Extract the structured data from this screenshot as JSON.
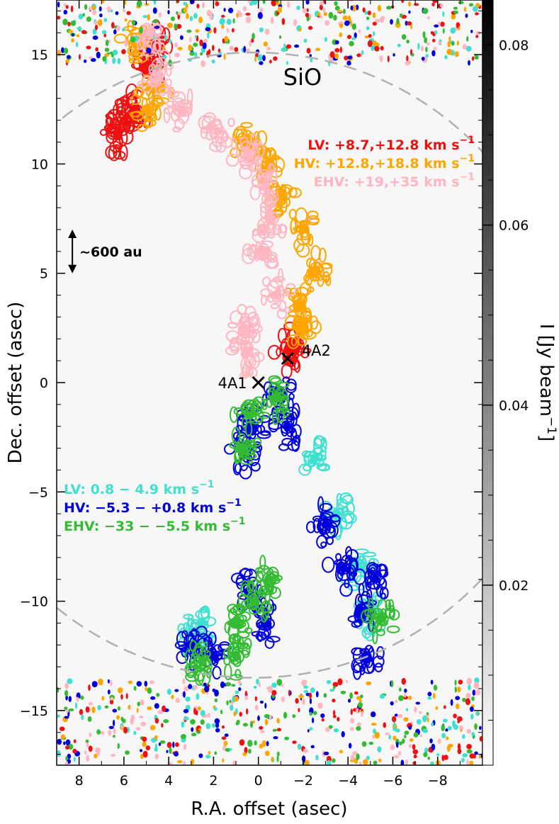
{
  "chart_data": {
    "type": "scatter",
    "title": "SiO",
    "xlabel": "R.A. offset (asec)",
    "ylabel": "Dec. offset (asec)",
    "xlim": [
      9,
      -10
    ],
    "ylim": [
      -17.5,
      17.5
    ],
    "x_ticks": [
      8,
      6,
      4,
      2,
      0,
      -2,
      -4,
      -6,
      -8
    ],
    "x_tick_labels": [
      "8",
      "6",
      "4",
      "2",
      "0",
      "−2",
      "−4",
      "−6",
      "−8"
    ],
    "y_ticks": [
      15,
      10,
      5,
      0,
      -5,
      -10,
      -15
    ],
    "y_tick_labels": [
      "15",
      "10",
      "5",
      "0",
      "−5",
      "−10",
      "−15"
    ],
    "colorbar": {
      "label": "I [Jy beam",
      "label_sup": "−1",
      "label_close": "]",
      "range": [
        0.0,
        0.085
      ],
      "ticks": [
        0.02,
        0.04,
        0.06,
        0.08
      ],
      "tick_labels": [
        "0.02",
        "0.04",
        "0.06",
        "0.08"
      ]
    },
    "scale_bar": {
      "label": "~600 au",
      "length_asec": 2.0
    },
    "sources": [
      {
        "name": "4A1",
        "x": 0.0,
        "y": 0.0
      },
      {
        "name": "4A2",
        "x": -1.3,
        "y": 1.1
      }
    ],
    "legend_red": [
      {
        "prefix": "LV:  ",
        "text": "+8.7,+12.8 km s",
        "sup": "−1",
        "color": "#ee1111"
      },
      {
        "prefix": "HV: ",
        "text": "+12.8,+18.8 km s",
        "sup": "−1",
        "color": "#ffa500"
      },
      {
        "prefix": "EHV: ",
        "text": "+19,+35 km s",
        "sup": "−1",
        "color": "#ffb6c1"
      }
    ],
    "legend_blue": [
      {
        "prefix": "LV: ",
        "text": "0.8 − 4.9 km s",
        "sup": "−1",
        "color": "#40e0d0"
      },
      {
        "prefix": "HV: ",
        "text": "−5.3 − +0.8 km s",
        "sup": "−1",
        "color": "#0000dd"
      },
      {
        "prefix": "EHV: ",
        "text": "−33 − −5.5 km s",
        "sup": "−1",
        "color": "#33bb33"
      }
    ],
    "emission_regions": [
      {
        "component": "red-LV",
        "color": "#ee1111",
        "points": [
          [
            6.0,
            12.0
          ],
          [
            5.5,
            12.5
          ],
          [
            6.3,
            11.3
          ],
          [
            5.0,
            14.5
          ],
          [
            4.6,
            15.5
          ],
          [
            -1.6,
            1.7
          ],
          [
            -1.4,
            1.4
          ]
        ]
      },
      {
        "component": "red-HV",
        "color": "#ffa500",
        "points": [
          [
            5.5,
            15.5
          ],
          [
            4.5,
            13.5
          ],
          [
            5.0,
            12.5
          ],
          [
            0.5,
            11.0
          ],
          [
            -0.5,
            10.0
          ],
          [
            -1.0,
            8.5
          ],
          [
            -2.0,
            7.0
          ],
          [
            -2.5,
            5.0
          ],
          [
            -1.8,
            3.5
          ],
          [
            -2.0,
            2.5
          ]
        ]
      },
      {
        "component": "red-EHV",
        "color": "#ffb6c1",
        "points": [
          [
            4.8,
            16.0
          ],
          [
            4.5,
            14.0
          ],
          [
            3.5,
            12.5
          ],
          [
            1.8,
            11.5
          ],
          [
            0.5,
            10.5
          ],
          [
            -0.3,
            9.0
          ],
          [
            -0.6,
            7.5
          ],
          [
            -0.2,
            6.0
          ],
          [
            -0.8,
            4.0
          ],
          [
            0.6,
            2.5
          ],
          [
            0.6,
            1.3
          ]
        ]
      },
      {
        "component": "blue-LV",
        "color": "#40e0d0",
        "points": [
          [
            -2.5,
            -3.5
          ],
          [
            -3.5,
            -6.0
          ],
          [
            -4.5,
            -8.5
          ],
          [
            -5.0,
            -10.5
          ],
          [
            3.0,
            -12.0
          ],
          [
            2.5,
            -11.0
          ]
        ]
      },
      {
        "component": "blue-HV",
        "color": "#0000dd",
        "points": [
          [
            -0.9,
            -0.5
          ],
          [
            -1.3,
            -2.0
          ],
          [
            0.3,
            -2.0
          ],
          [
            0.6,
            -3.2
          ],
          [
            -3.0,
            -6.5
          ],
          [
            -3.8,
            -8.5
          ],
          [
            -4.6,
            -10.5
          ],
          [
            -5.2,
            -9.0
          ],
          [
            -4.8,
            -12.5
          ],
          [
            3.0,
            -12.0
          ],
          [
            2.0,
            -12.5
          ],
          [
            0.4,
            -9.5
          ],
          [
            -0.3,
            -11.0
          ]
        ]
      },
      {
        "component": "blue-EHV",
        "color": "#33bb33",
        "points": [
          [
            0.4,
            -1.5
          ],
          [
            0.7,
            -3.0
          ],
          [
            -0.8,
            -0.7
          ],
          [
            1.0,
            -12.5
          ],
          [
            2.5,
            -12.8
          ],
          [
            1.0,
            -11.0
          ],
          [
            0.2,
            -10.0
          ],
          [
            -0.5,
            -9.0
          ],
          [
            -5.5,
            -10.8
          ]
        ]
      }
    ]
  }
}
